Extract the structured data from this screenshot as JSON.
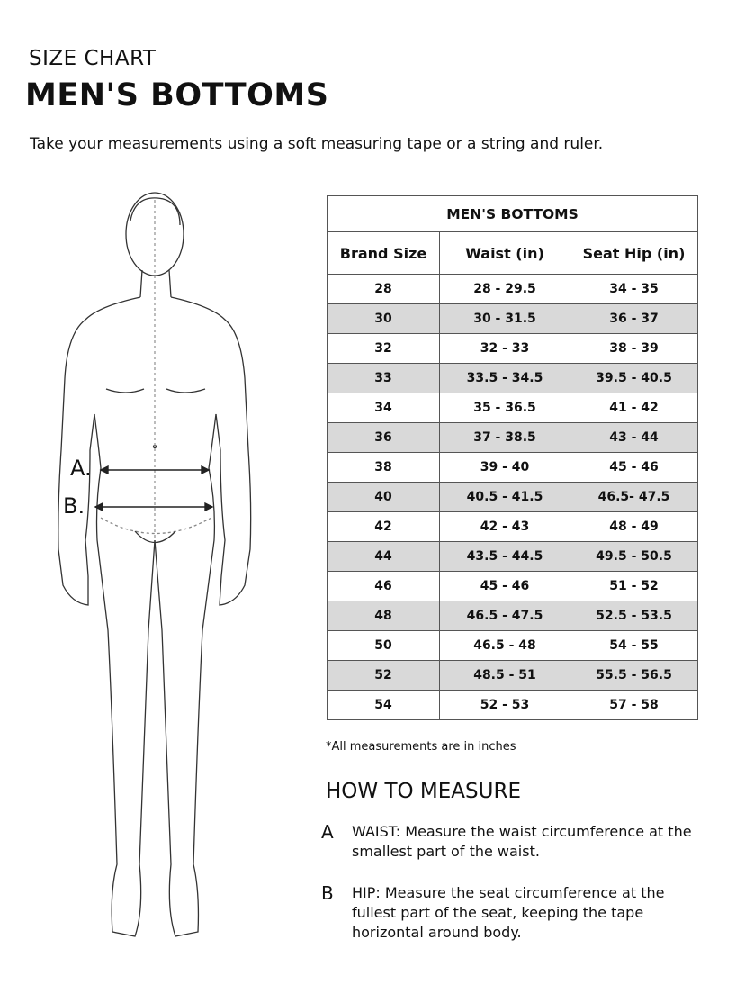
{
  "header": {
    "kicker": "SIZE CHART",
    "title": "MEN'S BOTTOMS",
    "intro": "Take your measurements using a soft measuring tape or a string and ruler."
  },
  "figure": {
    "label_a": "A.",
    "label_b": "B."
  },
  "table": {
    "caption": "MEN'S BOTTOMS",
    "columns": [
      "Brand Size",
      "Waist (in)",
      "Seat Hip (in)"
    ],
    "rows": [
      [
        "28",
        "28 - 29.5",
        "34 - 35"
      ],
      [
        "30",
        "30 - 31.5",
        "36 - 37"
      ],
      [
        "32",
        "32 - 33",
        "38 - 39"
      ],
      [
        "33",
        "33.5 - 34.5",
        "39.5 - 40.5"
      ],
      [
        "34",
        "35 - 36.5",
        "41 - 42"
      ],
      [
        "36",
        "37 - 38.5",
        "43 - 44"
      ],
      [
        "38",
        "39 - 40",
        "45 - 46"
      ],
      [
        "40",
        "40.5 - 41.5",
        "46.5- 47.5"
      ],
      [
        "42",
        "42 - 43",
        "48 - 49"
      ],
      [
        "44",
        "43.5 - 44.5",
        "49.5 - 50.5"
      ],
      [
        "46",
        "45 - 46",
        "51 - 52"
      ],
      [
        "48",
        "46.5 - 47.5",
        "52.5 - 53.5"
      ],
      [
        "50",
        "46.5 - 48",
        "54 - 55"
      ],
      [
        "52",
        "48.5 - 51",
        "55.5 - 56.5"
      ],
      [
        "54",
        "52 -  53",
        "57 - 58"
      ]
    ],
    "shade_color": "#d9d9d9"
  },
  "note": "*All measurements are in inches",
  "how_to": {
    "title": "HOW TO MEASURE",
    "steps": [
      {
        "letter": "A",
        "text": "WAIST: Measure the waist circumference at the smallest part of the waist."
      },
      {
        "letter": "B",
        "text": "HIP: Measure the seat circumference at the fullest part of the seat, keeping the tape horizontal around body."
      }
    ]
  }
}
